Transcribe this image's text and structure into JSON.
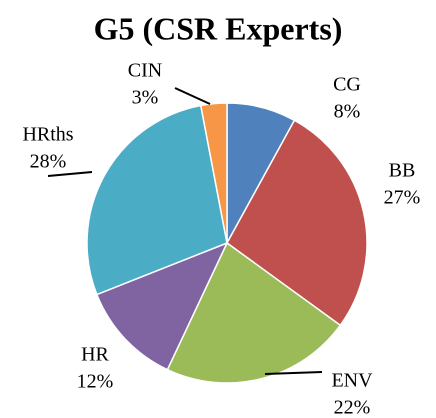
{
  "chart_data": {
    "type": "pie",
    "title": "G5 (CSR Experts)",
    "categories": [
      "CG",
      "BB",
      "ENV",
      "HR",
      "HRths",
      "CIN"
    ],
    "values": [
      8,
      27,
      22,
      12,
      28,
      3
    ],
    "value_labels": [
      "8%",
      "27%",
      "22%",
      "12%",
      "28%",
      "3%"
    ],
    "colors": [
      "#4f81bd",
      "#c0504d",
      "#9bbb59",
      "#8064a2",
      "#4bacc6",
      "#f79646"
    ]
  }
}
